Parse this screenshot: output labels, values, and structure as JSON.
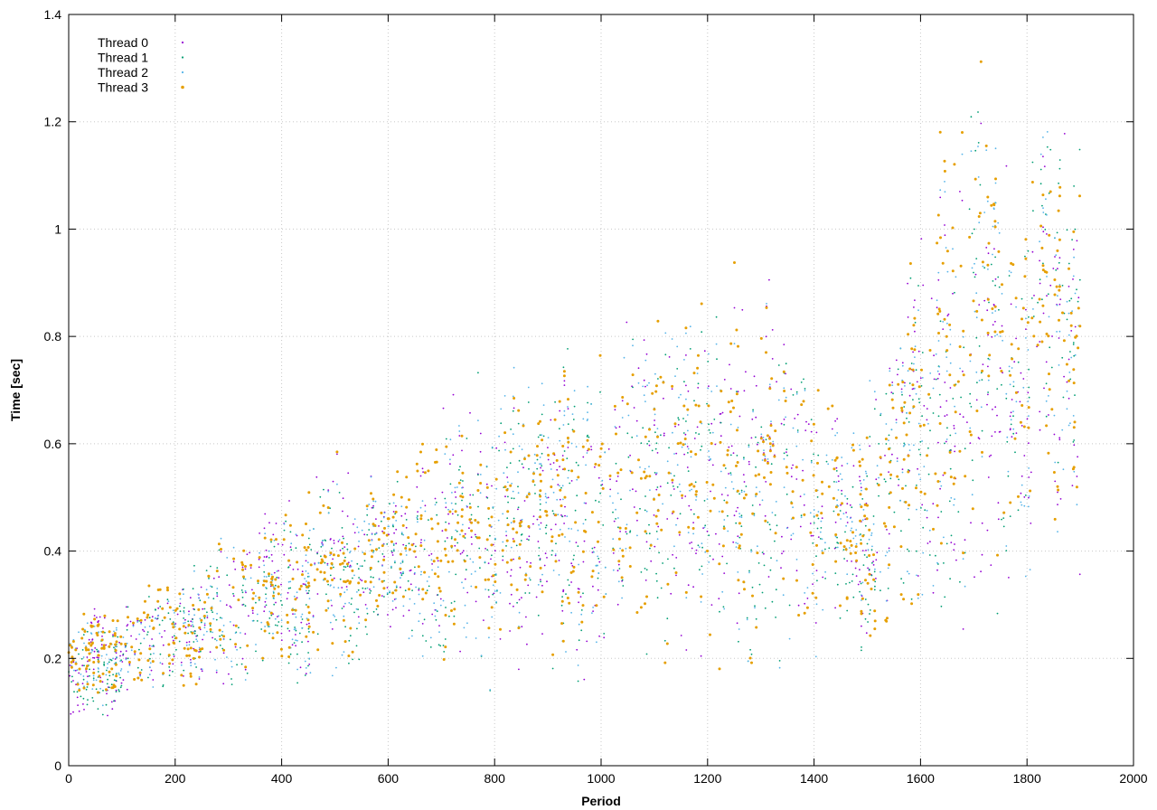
{
  "chart_data": {
    "type": "scatter",
    "title": "",
    "xlabel": "Period",
    "ylabel": "Time [sec]",
    "xlim": [
      0,
      2000
    ],
    "ylim": [
      0,
      1.4
    ],
    "x_ticks": [
      "0",
      "200",
      "400",
      "600",
      "800",
      "1000",
      "1200",
      "1400",
      "1600",
      "1800",
      "2000"
    ],
    "y_ticks": [
      "0",
      "0.2",
      "0.4",
      "0.6",
      "0.8",
      "1",
      "1.2",
      "1.4"
    ],
    "grid": true,
    "legend_position": "top-left",
    "series": [
      {
        "name": "Thread 0",
        "color": "#9400d3",
        "marker": "dot"
      },
      {
        "name": "Thread 1",
        "color": "#009e73",
        "marker": "dot"
      },
      {
        "name": "Thread 2",
        "color": "#56b4e9",
        "marker": "dot"
      },
      {
        "name": "Thread 3",
        "color": "#e69f00",
        "marker": "dot-large"
      }
    ],
    "trend": {
      "periods": [
        0,
        100,
        200,
        300,
        400,
        500,
        600,
        700,
        800,
        900,
        1000,
        1100,
        1200,
        1300,
        1400,
        1500,
        1600,
        1700,
        1800,
        1900
      ],
      "min": [
        0.08,
        0.09,
        0.12,
        0.13,
        0.15,
        0.16,
        0.2,
        0.13,
        0.12,
        0.13,
        0.15,
        0.2,
        0.15,
        0.18,
        0.17,
        0.22,
        0.3,
        0.24,
        0.33,
        0.32
      ],
      "median": [
        0.19,
        0.2,
        0.25,
        0.27,
        0.32,
        0.36,
        0.36,
        0.42,
        0.45,
        0.48,
        0.49,
        0.52,
        0.5,
        0.5,
        0.45,
        0.42,
        0.55,
        0.7,
        0.72,
        0.72
      ],
      "max": [
        0.27,
        0.33,
        0.35,
        0.49,
        0.5,
        0.6,
        0.55,
        0.76,
        0.72,
        0.8,
        0.88,
        0.91,
        0.95,
        1.01,
        0.85,
        0.72,
        1.2,
        1.33,
        1.33,
        1.27
      ],
      "samples_per_thread": 1900
    }
  }
}
